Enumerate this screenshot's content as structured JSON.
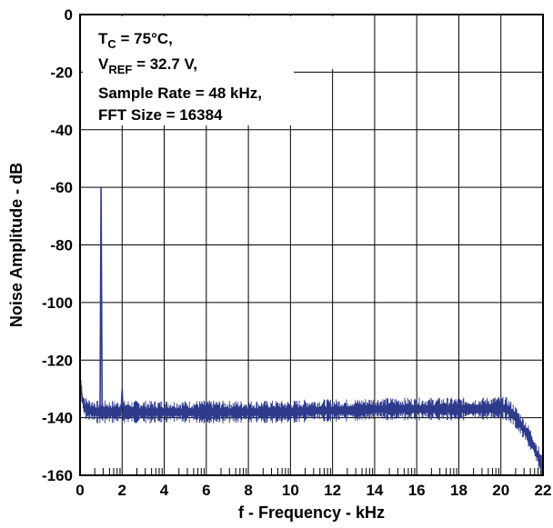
{
  "chart_data": {
    "type": "line",
    "xlabel": "f - Frequency - kHz",
    "ylabel": "Noise Amplitude - dB",
    "xlim": [
      0,
      22
    ],
    "ylim": [
      -160,
      0
    ],
    "x_ticks": [
      "0",
      "2",
      "4",
      "6",
      "8",
      "10",
      "12",
      "14",
      "16",
      "18",
      "20",
      "22"
    ],
    "y_ticks": [
      "0",
      "-20",
      "-40",
      "-60",
      "-80",
      "-100",
      "-120",
      "-140",
      "-160"
    ],
    "grid": true,
    "series_color": "#2e3a8c",
    "annotation": {
      "line1_main": "T",
      "line1_sub": "C",
      "line1_rest": " = 75°C,",
      "line2_main": "V",
      "line2_sub": "REF",
      "line2_rest": " = 32.7 V,",
      "line3": "Sample Rate = 48 kHz,",
      "line4": "FFT Size = 16384"
    },
    "series": [
      {
        "x": [
          0.0,
          0.05,
          0.1,
          0.15,
          0.2,
          0.3,
          0.5,
          0.8,
          0.95,
          1.0,
          1.05,
          1.2,
          1.5,
          1.95,
          2.0,
          2.05,
          2.5,
          3,
          4,
          5,
          6,
          7,
          8,
          9,
          10,
          11,
          12,
          13,
          14,
          15,
          16,
          17,
          18,
          19,
          20,
          20.3,
          20.6,
          20.9,
          21.2,
          21.5,
          21.8,
          22.0
        ],
        "y": [
          -126,
          -130,
          -133,
          -135,
          -136,
          -137,
          -137.5,
          -138,
          -138,
          -60,
          -138,
          -138,
          -138,
          -138,
          -130,
          -138,
          -138,
          -138,
          -138,
          -138,
          -138,
          -138,
          -138,
          -138,
          -138,
          -137.5,
          -137.5,
          -137.5,
          -137,
          -137,
          -137,
          -137,
          -137,
          -137,
          -136.5,
          -137,
          -139,
          -142,
          -145,
          -149,
          -154,
          -158
        ]
      }
    ]
  }
}
